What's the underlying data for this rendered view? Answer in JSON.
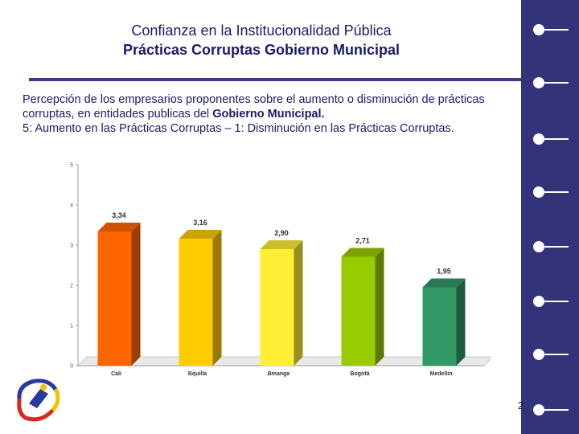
{
  "header": {
    "title_line1": "Confianza en la Institucionalidad Pública",
    "title_line2": "Prácticas Corruptas Gobierno Municipal"
  },
  "description": {
    "part1": "Percepción de los empresarios proponentes sobre el aumento o disminución de prácticas corruptas, en entidades publicas del ",
    "bold": "Gobierno Municipal.",
    "line3": "5: Aumento en las Prácticas Corruptas – 1: Disminución en las Prácticas Corruptas."
  },
  "page_number": "2",
  "colors": {
    "sidebar": "#33337a",
    "text": "#1a1a6e"
  },
  "chart_data": {
    "type": "bar",
    "categories": [
      "Cali",
      "Bquilla",
      "Bmanga",
      "Bogotá",
      "Medellín"
    ],
    "values": [
      3.34,
      3.16,
      2.9,
      2.71,
      1.95
    ],
    "value_labels": [
      "3,34",
      "3,16",
      "2,90",
      "2,71",
      "1,95"
    ],
    "colors": [
      "#ff6600",
      "#ffcc00",
      "#ffee33",
      "#99cc00",
      "#339966"
    ],
    "ylim": [
      0,
      5
    ],
    "yticks": [
      "0",
      "1",
      "2",
      "3",
      "4",
      "5"
    ],
    "title": "",
    "xlabel": "",
    "ylabel": "",
    "grid": false,
    "style": "3d"
  }
}
